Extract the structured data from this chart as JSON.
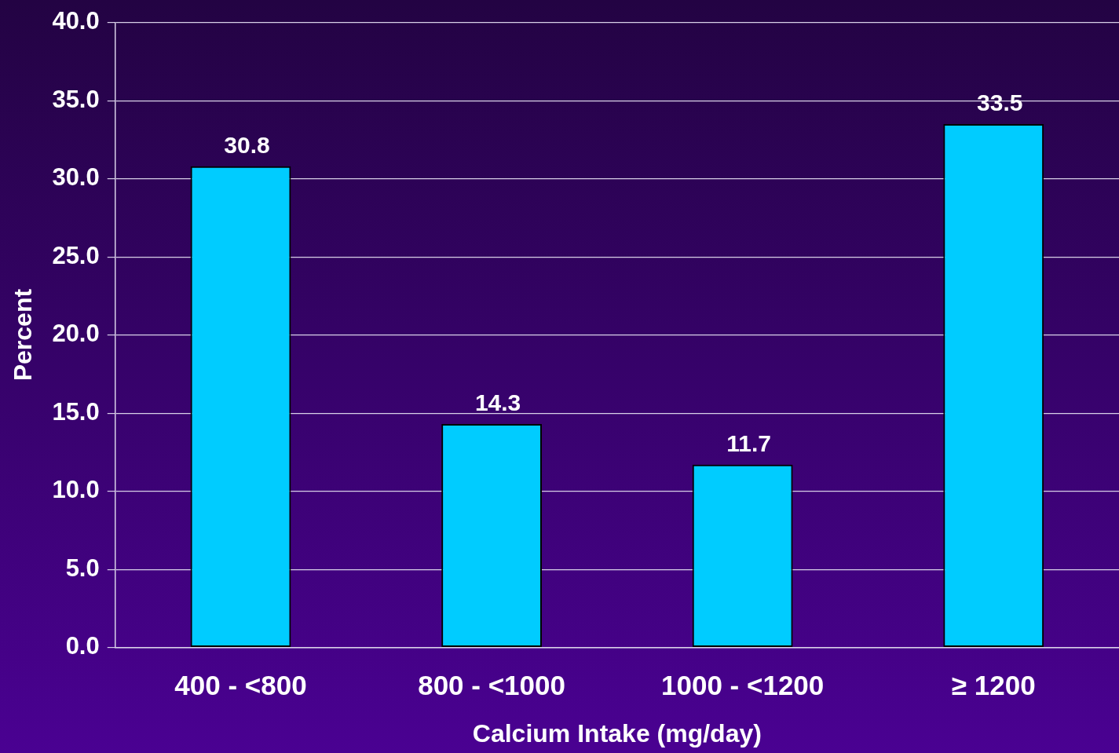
{
  "chart_data": {
    "type": "bar",
    "xlabel": "Calcium Intake (mg/day)",
    "ylabel": "Percent",
    "categories": [
      "400 - <800",
      "800 - <1000",
      "1000 - <1200",
      "≥ 1200"
    ],
    "values": [
      30.8,
      14.3,
      11.7,
      33.5
    ],
    "color": "#00ccff",
    "ylim": [
      0,
      40
    ],
    "yticks": [
      {
        "value": 0,
        "label": "0.0"
      },
      {
        "value": 5,
        "label": "5.0"
      },
      {
        "value": 10,
        "label": "10.0"
      },
      {
        "value": 15,
        "label": "15.0"
      },
      {
        "value": 20,
        "label": "20.0"
      },
      {
        "value": 25,
        "label": "25.0"
      },
      {
        "value": 30,
        "label": "30.0"
      },
      {
        "value": 35,
        "label": "35.0"
      },
      {
        "value": 40,
        "label": "40.0"
      }
    ],
    "grid": "y",
    "legend": false,
    "data_labels": true
  }
}
